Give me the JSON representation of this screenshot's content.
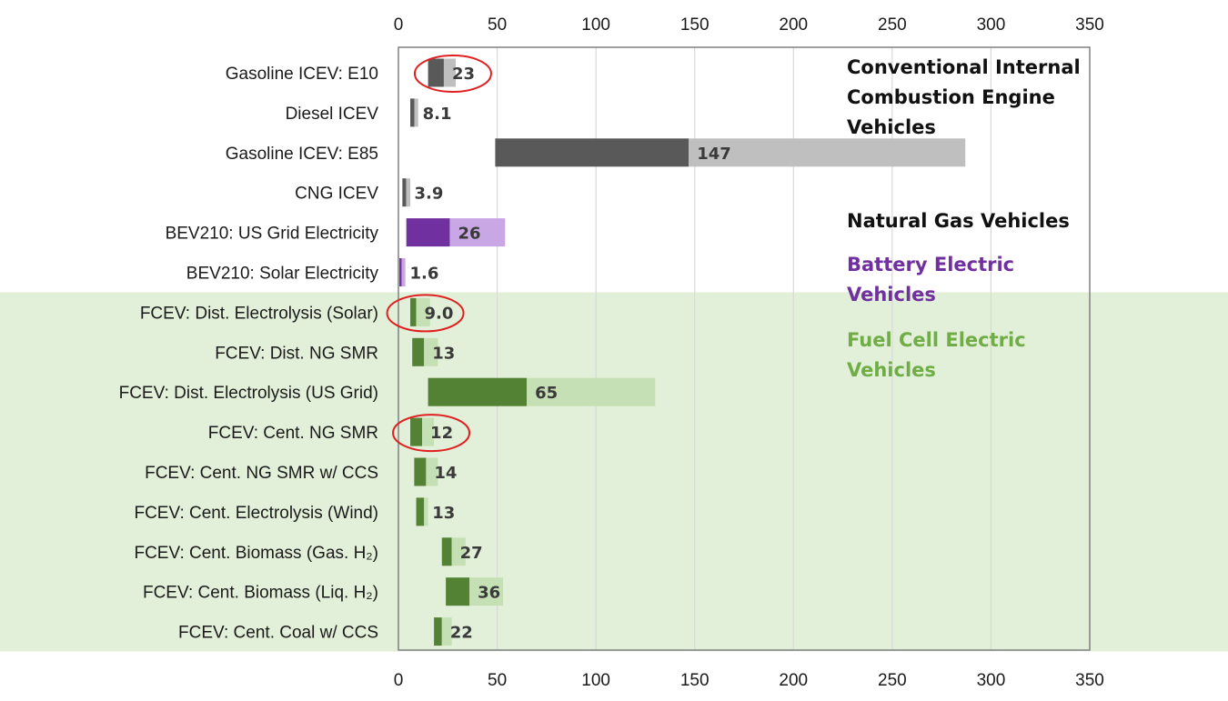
{
  "chart_data": {
    "type": "bar",
    "orientation": "horizontal",
    "style": "floating range bars with midpoint",
    "xlim": [
      0,
      350
    ],
    "x_ticks": [
      0,
      50,
      100,
      150,
      200,
      250,
      300,
      350
    ],
    "x_axis_position": "top and bottom",
    "grid": true,
    "categories": [
      "Gasoline ICEV: E10",
      "Diesel ICEV",
      "Gasoline ICEV: E85",
      "CNG ICEV",
      "BEV210: US Grid Electricity",
      "BEV210: Solar Electricity",
      "FCEV: Dist. Electrolysis (Solar)",
      "FCEV: Dist. NG SMR",
      "FCEV: Dist. Electrolysis (US Grid)",
      "FCEV: Cent. NG SMR",
      "FCEV: Cent. NG SMR w/ CCS",
      "FCEV: Cent. Electrolysis (Wind)",
      "FCEV: Cent. Biomass (Gas. H₂)",
      "FCEV: Cent. Biomass (Liq. H₂)",
      "FCEV: Cent. Coal w/ CCS"
    ],
    "groups": [
      "icev",
      "icev",
      "icev",
      "icev",
      "bev",
      "bev",
      "fcev",
      "fcev",
      "fcev",
      "fcev",
      "fcev",
      "fcev",
      "fcev",
      "fcev",
      "fcev"
    ],
    "low": [
      15,
      6,
      49,
      2,
      4,
      0.5,
      6,
      7,
      15,
      6,
      8,
      9,
      22,
      24,
      18
    ],
    "mid": [
      23,
      8.1,
      147,
      3.9,
      26,
      1.6,
      9.0,
      13,
      65,
      12,
      14,
      13,
      27,
      36,
      22
    ],
    "high": [
      29,
      10,
      287,
      6,
      54,
      3.5,
      16,
      20,
      130,
      18,
      20,
      15,
      34,
      53,
      27
    ],
    "value_labels": [
      "23",
      "8.1",
      "147",
      "3.9",
      "26",
      "1.6",
      "9.0",
      "13",
      "65",
      "12",
      "14",
      "13",
      "27",
      "36",
      "22"
    ],
    "highlighted_rows": [
      "Gasoline ICEV: E10",
      "FCEV: Dist. Electrolysis (Solar)",
      "FCEV: Cent. NG SMR"
    ],
    "legend": [
      {
        "label": "Conventional Internal Combustion Engine Vehicles",
        "lines": [
          "Conventional Internal",
          "Combustion Engine",
          "Vehicles"
        ],
        "color": "#111111"
      },
      {
        "label": "Natural Gas Vehicles",
        "lines": [
          "Natural Gas Vehicles"
        ],
        "color": "#111111"
      },
      {
        "label": "Battery Electric Vehicles",
        "lines": [
          "Battery Electric",
          "Vehicles"
        ],
        "color": "#7030a0"
      },
      {
        "label": "Fuel Cell Electric Vehicles",
        "lines": [
          "Fuel Cell Electric",
          "Vehicles"
        ],
        "color": "#70ad47"
      }
    ],
    "colors": {
      "icev_dark": "#595959",
      "icev_light": "#bfbfbf",
      "bev_dark": "#7030a0",
      "bev_light": "#c9a6e4",
      "fcev_dark": "#548235",
      "fcev_light": "#c5e0b4",
      "fcev_band": "#e2f0d9",
      "highlight_circle": "#e02020",
      "grid": "#d9d9d9",
      "frame": "#808080"
    }
  }
}
